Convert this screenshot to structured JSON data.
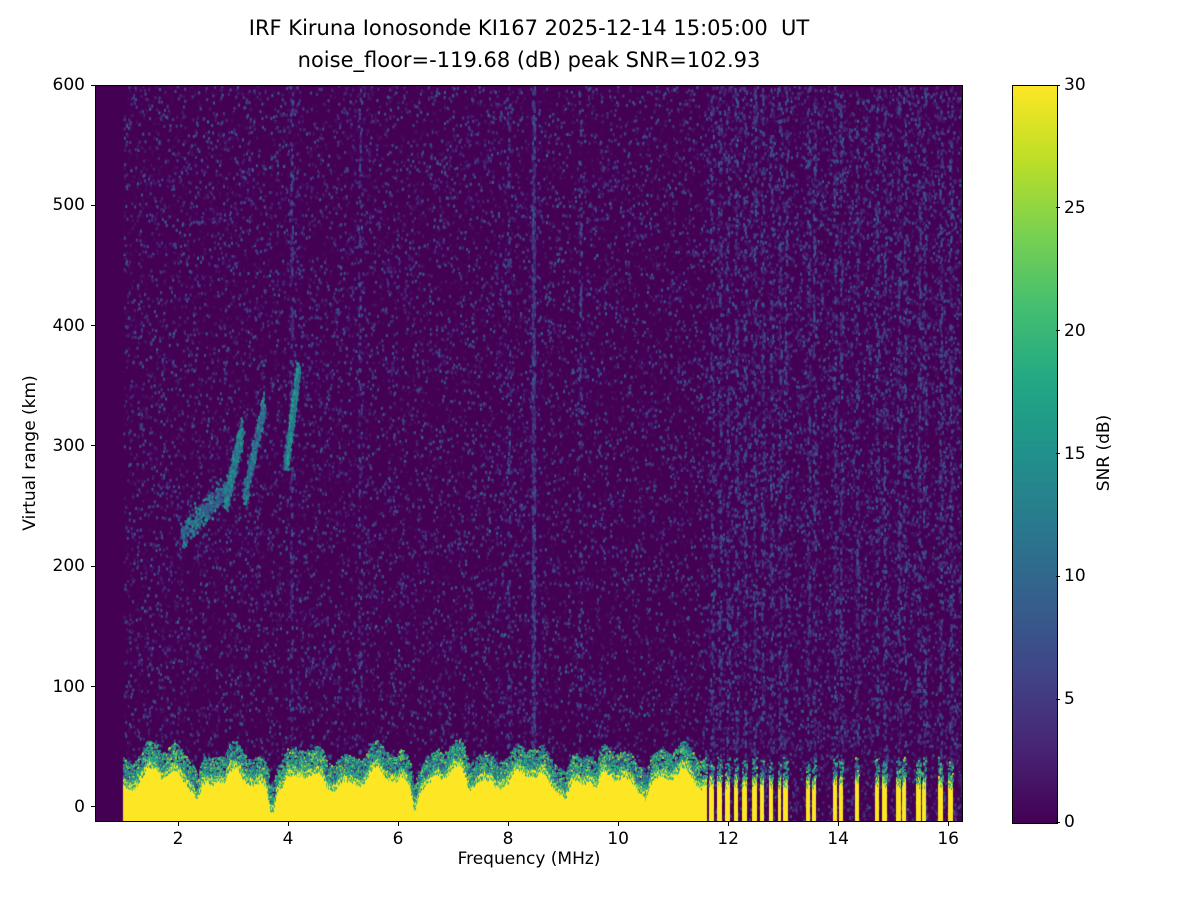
{
  "figure": {
    "kind": "matplotlib-ionogram",
    "background": "#ffffff"
  },
  "chart_data": {
    "type": "heatmap",
    "title": "IRF Kiruna Ionosonde KI167 2025-12-14 15:05:00  UT",
    "subtitle": "noise_floor=-119.68 (dB) peak SNR=102.93",
    "station": "KI167",
    "timestamp_ut": "2025-12-14 15:05:00",
    "noise_floor_db": -119.68,
    "peak_snr_db": 102.93,
    "xlabel": "Frequency (MHz)",
    "ylabel": "Virtual range (km)",
    "colorbar_label": "SNR (dB)",
    "xlim": [
      0.49,
      16.27
    ],
    "ylim": [
      -12.5,
      600
    ],
    "zlim": [
      0,
      30
    ],
    "x_ticks": [
      2,
      4,
      6,
      8,
      10,
      12,
      14,
      16
    ],
    "y_ticks": [
      0,
      100,
      200,
      300,
      400,
      500,
      600
    ],
    "colorbar_ticks": [
      0,
      5,
      10,
      15,
      20,
      25,
      30
    ],
    "colormap": "viridis",
    "colormap_stops": [
      {
        "t": 0.0,
        "c": "#440154"
      },
      {
        "t": 0.1,
        "c": "#482475"
      },
      {
        "t": 0.2,
        "c": "#414487"
      },
      {
        "t": 0.3,
        "c": "#355f8d"
      },
      {
        "t": 0.4,
        "c": "#2a788e"
      },
      {
        "t": 0.5,
        "c": "#21918c"
      },
      {
        "t": 0.6,
        "c": "#22a884"
      },
      {
        "t": 0.7,
        "c": "#44bf70"
      },
      {
        "t": 0.8,
        "c": "#7ad151"
      },
      {
        "t": 0.9,
        "c": "#bddf26"
      },
      {
        "t": 1.0,
        "c": "#fde725"
      }
    ],
    "features": {
      "data_extent_mhz": [
        1.0,
        16.27
      ],
      "background_snr_db": 0,
      "noise_speckle": {
        "count": 26000,
        "snr_low": 0.5,
        "snr_high": 9
      },
      "rfi_band": {
        "x_mhz": [
          11.6,
          16.27
        ],
        "count": 4200,
        "snr_range": [
          1,
          8
        ]
      },
      "interference_columns": [
        {
          "f": 4.05,
          "n": 170
        },
        {
          "f": 5.3,
          "n": 100
        },
        {
          "f": 8.0,
          "n": 110
        },
        {
          "f": 8.45,
          "n": 520
        },
        {
          "f": 9.3,
          "n": 100
        }
      ],
      "ground_clutter": {
        "continuous_mhz": [
          1.0,
          11.62
        ],
        "band_top_km_mean": 29,
        "fringe_km": 16,
        "solid_snr_db": 30,
        "stripe_top_km_mean": 24,
        "dips": [
          {
            "f": 2.35,
            "depth": 9
          },
          {
            "f": 3.7,
            "depth": 24
          },
          {
            "f": 6.3,
            "depth": 16
          },
          {
            "f": 7.3,
            "depth": 10
          },
          {
            "f": 9.05,
            "depth": 10
          },
          {
            "f": 9.6,
            "depth": 12
          },
          {
            "f": 10.5,
            "depth": 8
          }
        ]
      },
      "clutter_stripes_mhz": [
        [
          11.66,
          11.74
        ],
        [
          11.8,
          11.88
        ],
        [
          11.95,
          12.03
        ],
        [
          12.1,
          12.18
        ],
        [
          12.26,
          12.34
        ],
        [
          12.44,
          12.52
        ],
        [
          12.58,
          12.66
        ],
        [
          12.74,
          12.82
        ],
        [
          12.9,
          12.97
        ],
        [
          13.0,
          13.08
        ],
        [
          13.42,
          13.49
        ],
        [
          13.52,
          13.6
        ],
        [
          13.9,
          13.98
        ],
        [
          14.01,
          14.09
        ],
        [
          14.3,
          14.38
        ],
        [
          14.67,
          14.74
        ],
        [
          14.8,
          14.88
        ],
        [
          15.06,
          15.14
        ],
        [
          15.17,
          15.24
        ],
        [
          15.42,
          15.5
        ],
        [
          15.53,
          15.6
        ],
        [
          15.82,
          15.9
        ],
        [
          16.0,
          16.08
        ]
      ],
      "echo_traces": [
        {
          "x_mhz": [
            2.05,
            2.95
          ],
          "y_km": [
            228,
            268
          ],
          "spread_km": 12,
          "snr_range": [
            6,
            16
          ],
          "count": 350
        },
        {
          "x_mhz": [
            2.85,
            3.15
          ],
          "y_km": [
            255,
            315
          ],
          "spread_km": 10,
          "snr_range": [
            8,
            18
          ],
          "count": 700
        },
        {
          "x_mhz": [
            3.2,
            3.55
          ],
          "y_km": [
            260,
            335
          ],
          "spread_km": 10,
          "snr_range": [
            6,
            16
          ],
          "count": 450
        },
        {
          "x_mhz": [
            3.95,
            4.18
          ],
          "y_km": [
            285,
            365
          ],
          "spread_km": 8,
          "snr_range": [
            8,
            18
          ],
          "count": 800
        }
      ]
    }
  }
}
